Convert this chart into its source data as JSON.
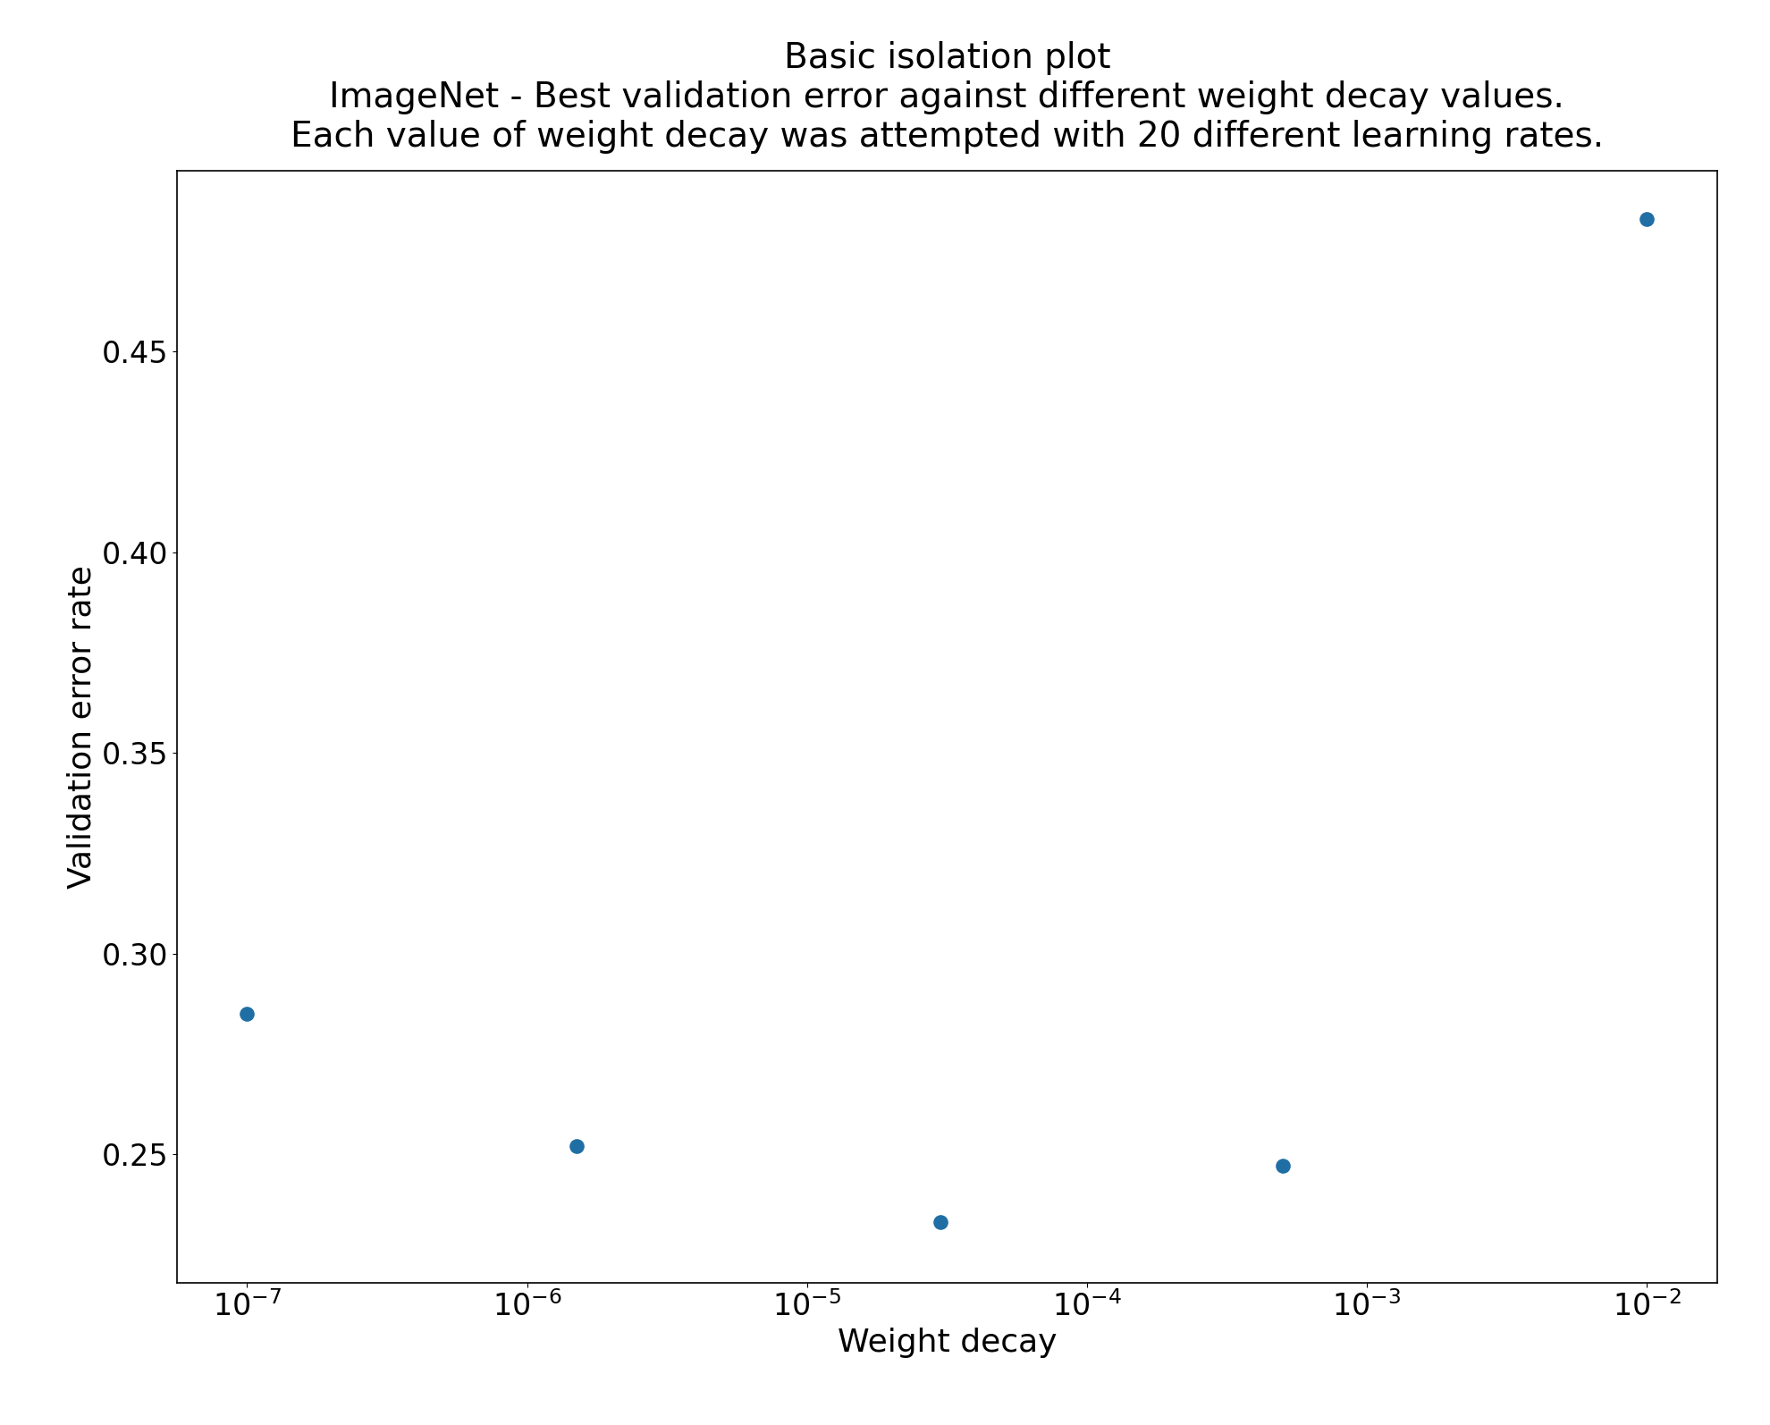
{
  "x": [
    1e-07,
    1.5e-06,
    3e-05,
    0.0005,
    0.01
  ],
  "y": [
    0.285,
    0.252,
    0.233,
    0.247,
    0.483
  ],
  "title_line1": "Basic isolation plot",
  "title_line2": "ImageNet - Best validation error against different weight decay values.",
  "title_line3": "Each value of weight decay was attempted with 20 different learning rates.",
  "xlabel": "Weight decay",
  "ylabel": "Validation error rate",
  "marker_color": "#1f6fa4",
  "marker_size": 120,
  "ylim": [
    0.218,
    0.495
  ],
  "background_color": "#ffffff",
  "title_fontsize": 28,
  "label_fontsize": 26,
  "tick_fontsize": 24
}
